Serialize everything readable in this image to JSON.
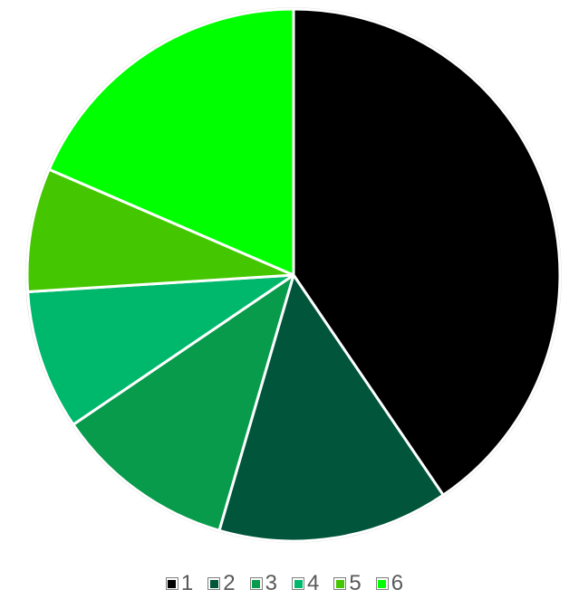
{
  "chart_data": {
    "type": "pie",
    "title": "",
    "start_angle_deg": 0,
    "direction": "clockwise",
    "slices": [
      {
        "label": "1",
        "value": 40.5,
        "color": "#000000"
      },
      {
        "label": "2",
        "value": 14.0,
        "color": "#00553a"
      },
      {
        "label": "3",
        "value": 11.0,
        "color": "#089b4b"
      },
      {
        "label": "4",
        "value": 8.5,
        "color": "#00b86c"
      },
      {
        "label": "5",
        "value": 7.5,
        "color": "#44c600"
      },
      {
        "label": "6",
        "value": 18.5,
        "color": "#00ff00"
      }
    ],
    "legend_position": "bottom"
  }
}
